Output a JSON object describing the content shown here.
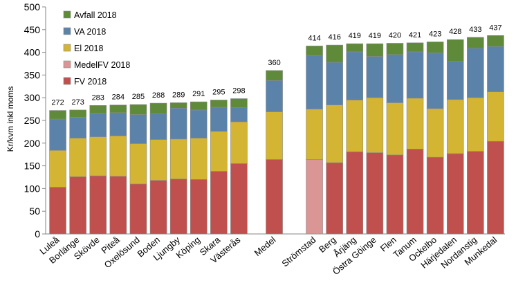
{
  "chart_data": {
    "type": "bar",
    "stacked": true,
    "title": "",
    "xlabel": "",
    "ylabel": "Kr/kvm inkl moms",
    "ylim": [
      0,
      500
    ],
    "yticks": [
      0,
      50,
      100,
      150,
      200,
      250,
      300,
      350,
      400,
      450,
      500
    ],
    "grid": false,
    "legend_position": "top-left",
    "legend_order": [
      "Avfall 2018",
      "VA 2018",
      "El 2018",
      "MedelFV 2018",
      "FV 2018"
    ],
    "colors": {
      "FV 2018": "#c0504d",
      "MedelFV 2018": "#d99694",
      "El 2018": "#d4b433",
      "VA 2018": "#5b82a8",
      "Avfall 2018": "#5f8a3a"
    },
    "groups": [
      {
        "name": "left",
        "categories": [
          "Luleå",
          "Borlänge",
          "Skövde",
          "Piteå",
          "Oxelösund",
          "Boden",
          "Ljungby",
          "Köping",
          "Skara",
          "Västerås"
        ],
        "totals": [
          272,
          273,
          283,
          284,
          285,
          288,
          289,
          291,
          295,
          298
        ],
        "series": [
          {
            "name": "FV 2018",
            "values": [
              103,
              126,
              128,
              127,
              110,
              118,
              121,
              120,
              138,
              155
            ]
          },
          {
            "name": "El 2018",
            "values": [
              81,
              85,
              86,
              89,
              89,
              90,
              88,
              91,
              88,
              92
            ]
          },
          {
            "name": "VA 2018",
            "values": [
              69,
              46,
              52,
              51,
              64,
              57,
              68,
              62,
              53,
              31
            ]
          },
          {
            "name": "Avfall 2018",
            "values": [
              19,
              16,
              17,
              17,
              22,
              23,
              12,
              18,
              16,
              20
            ]
          }
        ]
      },
      {
        "name": "middle",
        "categories": [
          "Medel"
        ],
        "totals": [
          360
        ],
        "series": [
          {
            "name": "FV 2018",
            "values": [
              164
            ]
          },
          {
            "name": "El 2018",
            "values": [
              105
            ]
          },
          {
            "name": "VA 2018",
            "values": [
              69
            ]
          },
          {
            "name": "Avfall 2018",
            "values": [
              22
            ]
          }
        ]
      },
      {
        "name": "right",
        "categories": [
          "Strömstad",
          "Berg",
          "Årjäng",
          "Östra Göinge",
          "Flen",
          "Tanum",
          "Ockelbo",
          "Härjedalen",
          "Nordanstig",
          "Munkedal"
        ],
        "totals": [
          414,
          416,
          419,
          419,
          420,
          421,
          423,
          428,
          433,
          437
        ],
        "series": [
          {
            "name": "MedelFV 2018",
            "values": [
              164,
              0,
              0,
              0,
              0,
              0,
              0,
              0,
              0,
              0
            ]
          },
          {
            "name": "FV 2018",
            "values": [
              0,
              157,
              181,
              179,
              174,
              187,
              169,
              177,
              182,
              204
            ]
          },
          {
            "name": "El 2018",
            "values": [
              111,
              127,
              114,
              121,
              115,
              112,
              107,
              119,
              118,
              109
            ]
          },
          {
            "name": "VA 2018",
            "values": [
              118,
              94,
              106,
              91,
              106,
              102,
              123,
              84,
              109,
              100
            ]
          },
          {
            "name": "Avfall 2018",
            "values": [
              21,
              38,
              18,
              28,
              25,
              20,
              24,
              48,
              24,
              24
            ]
          }
        ]
      }
    ]
  }
}
